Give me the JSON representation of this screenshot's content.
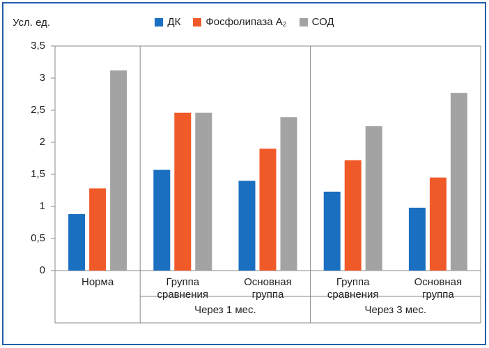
{
  "chart_data": {
    "type": "bar",
    "y_label": "Усл. ед.",
    "categories": [
      "Норма",
      "Группа\nсравнения",
      "Основная\nгруппа",
      "Группа\nсравнения",
      "Основная\nгруппа"
    ],
    "groups": [
      null,
      "Через 1 мес.",
      "Через 1 мес.",
      "Через 3 мес.",
      "Через 3 мес."
    ],
    "series": [
      {
        "name": "ДК",
        "color": "#1b6fc0",
        "values": [
          0.88,
          1.57,
          1.4,
          1.23,
          0.98
        ]
      },
      {
        "name": "Фосфолипаза A₂",
        "color": "#f05a28",
        "values": [
          1.28,
          2.46,
          1.9,
          1.72,
          1.45
        ]
      },
      {
        "name": "СОД",
        "color": "#a3a3a3",
        "values": [
          3.12,
          2.46,
          2.39,
          2.25,
          2.77
        ]
      }
    ],
    "ylim": [
      0,
      3.5
    ],
    "yticks": [
      0,
      {
        "value": 0.5,
        "label": "0,5"
      },
      1,
      {
        "value": 1.5,
        "label": "1,5"
      },
      2,
      {
        "value": 2.5,
        "label": "2,5"
      },
      3,
      {
        "value": 3.5,
        "label": "3,5"
      }
    ],
    "legend": "top"
  }
}
